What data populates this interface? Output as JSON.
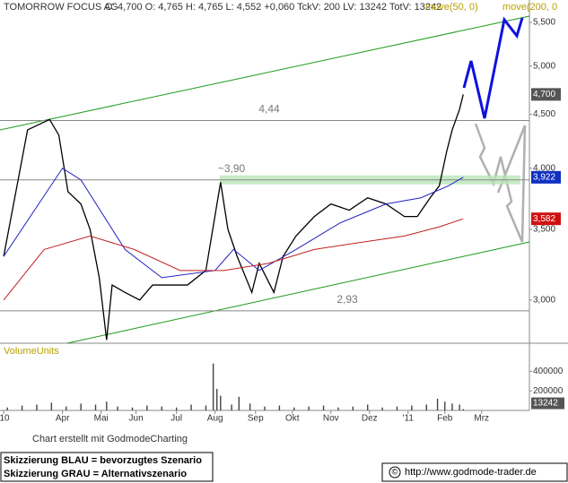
{
  "chart_data": {
    "type": "line",
    "title": "TOMORROW FOCUS AG",
    "quote": "C: 4,700 O: 4,765 H: 4,765 L: 4,552 +0,060 TckV: 200 LV: 13242 TotV: 13242",
    "log_scale": true,
    "xlim": [
      -2,
      286
    ],
    "xticks": [
      {
        "value": 0,
        "label": "'10"
      },
      {
        "value": 32,
        "label": "Apr"
      },
      {
        "value": 53,
        "label": "Mai"
      },
      {
        "value": 72,
        "label": "Jun"
      },
      {
        "value": 94,
        "label": "Jul"
      },
      {
        "value": 115,
        "label": "Aug"
      },
      {
        "value": 137,
        "label": "Sep"
      },
      {
        "value": 157,
        "label": "Okt"
      },
      {
        "value": 178,
        "label": "Nov"
      },
      {
        "value": 199,
        "label": "Dez"
      },
      {
        "value": 220,
        "label": "'11"
      },
      {
        "value": 240,
        "label": "Feb"
      },
      {
        "value": 260,
        "label": "Mrz"
      }
    ],
    "ylim": [
      2730,
      5776
    ],
    "yticks": [
      {
        "value": 3000,
        "label": "3,000"
      },
      {
        "value": 3500,
        "label": "3,500"
      },
      {
        "value": 4000,
        "label": "4,000"
      },
      {
        "value": 4500,
        "label": "4,500"
      },
      {
        "value": 5000,
        "label": "5,000"
      },
      {
        "value": 5500,
        "label": "5,500"
      }
    ],
    "series": [
      {
        "color": "#000000",
        "last_label": {
          "value": 4700,
          "label": "4,700"
        },
        "label_color": "#555555",
        "x": [
          0,
          13,
          25,
          30,
          35,
          42,
          47,
          52,
          56,
          59,
          66,
          74,
          81,
          91,
          100,
          110,
          118,
          122,
          127,
          135,
          139,
          147,
          152,
          159,
          169,
          178,
          188,
          198,
          208,
          218,
          225,
          232,
          237,
          241,
          244,
          248,
          250
        ],
        "values": [
          3300,
          4350,
          4450,
          4300,
          3800,
          3700,
          3500,
          3150,
          2750,
          3100,
          3050,
          3000,
          3100,
          3100,
          3100,
          3200,
          3880,
          3500,
          3300,
          3050,
          3250,
          3050,
          3300,
          3450,
          3600,
          3700,
          3650,
          3750,
          3700,
          3600,
          3600,
          3750,
          3850,
          4150,
          4350,
          4550,
          4700
        ]
      },
      {
        "name": "move(50, 0)",
        "color": "#2020c0",
        "last_label": {
          "value": 3922,
          "label": "3,922"
        },
        "label_color": "#1030c0",
        "x": [
          0,
          32,
          42,
          66,
          86,
          115,
          125,
          139,
          159,
          183,
          208,
          227,
          242,
          250
        ],
        "values": [
          3300,
          4000,
          3900,
          3350,
          3150,
          3200,
          3350,
          3200,
          3350,
          3550,
          3700,
          3750,
          3850,
          3922
        ]
      },
      {
        "name": "move(200, 0",
        "color": "#c02020",
        "last_label": {
          "value": 3582,
          "label": "3,582"
        },
        "label_color": "#d01010",
        "x": [
          0,
          22,
          47,
          71,
          96,
          120,
          144,
          169,
          193,
          218,
          237,
          250
        ],
        "values": [
          3000,
          3350,
          3450,
          3350,
          3200,
          3200,
          3250,
          3350,
          3400,
          3450,
          3520,
          3582
        ]
      }
    ],
    "levels": [
      {
        "value": 4440,
        "label": "4,44"
      },
      {
        "value": 3900,
        "label": "~3,90"
      },
      {
        "value": 2930,
        "label": "2,93"
      }
    ],
    "volume": {
      "label": "VolumeUnits",
      "color": "#444444",
      "ylim": [
        0,
        670000
      ],
      "yticks": [
        200000,
        400000
      ],
      "last": 13242,
      "x": [
        2,
        10,
        18,
        26,
        34,
        42,
        50,
        56,
        62,
        70,
        78,
        86,
        94,
        102,
        110,
        114,
        116,
        118,
        124,
        128,
        134,
        142,
        150,
        158,
        166,
        174,
        182,
        190,
        198,
        206,
        214,
        222,
        230,
        236,
        240,
        244,
        248,
        250
      ],
      "values": [
        30000,
        50000,
        60000,
        80000,
        40000,
        70000,
        60000,
        90000,
        40000,
        30000,
        50000,
        40000,
        30000,
        60000,
        50000,
        480000,
        220000,
        150000,
        60000,
        140000,
        70000,
        40000,
        50000,
        30000,
        40000,
        50000,
        30000,
        40000,
        60000,
        30000,
        40000,
        50000,
        60000,
        120000,
        90000,
        70000,
        60000,
        13242
      ]
    }
  },
  "credit": "Chart erstellt mit GodmodeCharting",
  "scenario_lines": [
    "Skizzierung BLAU = bevorzugtes Szenario",
    "Skizzierung GRAU = Alternativszenario"
  ],
  "copyright_symbol": "©",
  "url": "http://www.godmode-trader.de"
}
